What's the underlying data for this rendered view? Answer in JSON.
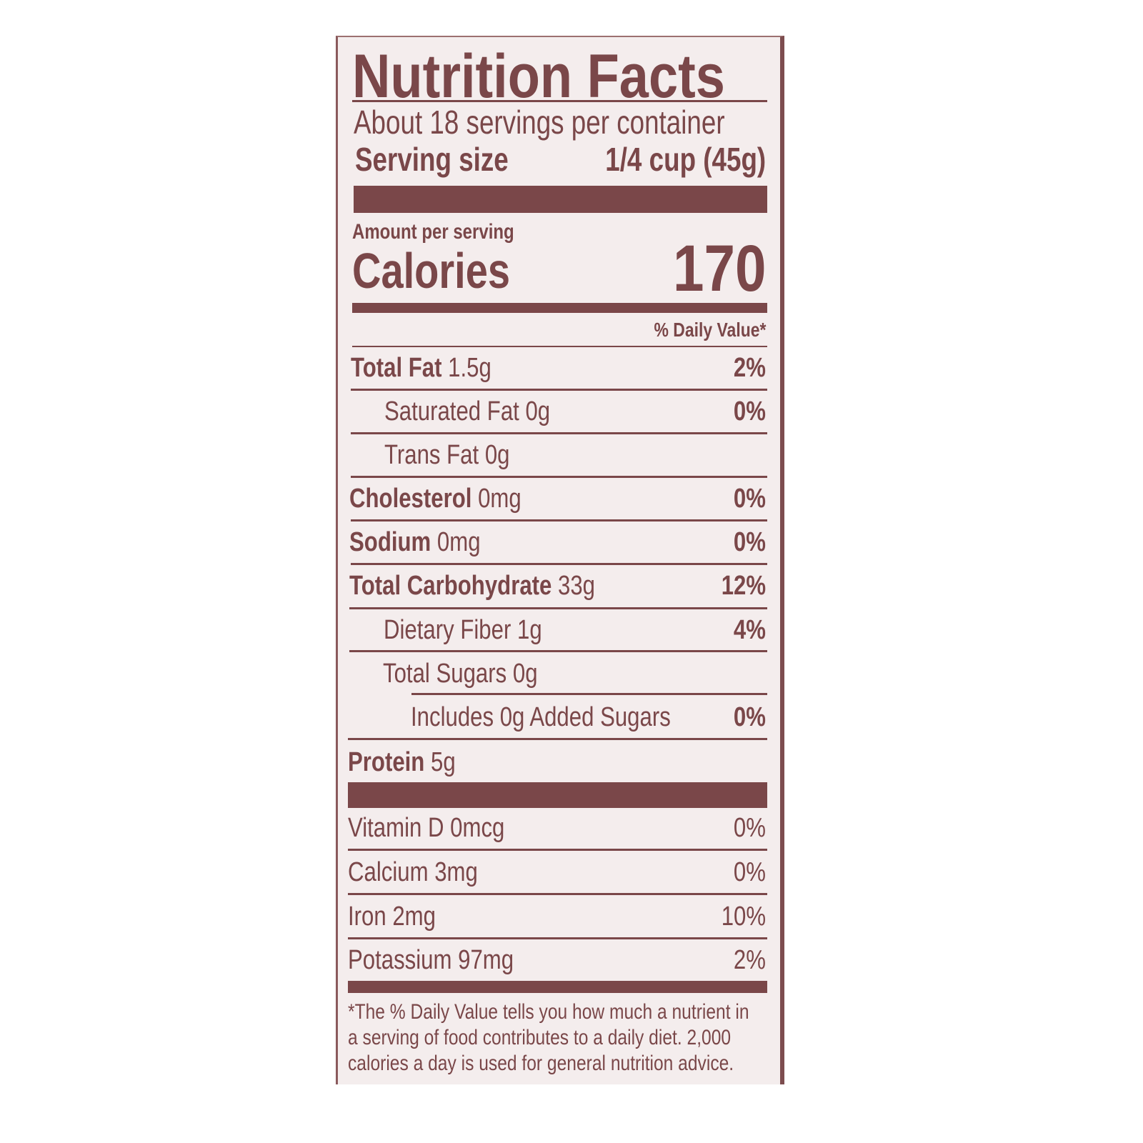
{
  "title": "Nutrition Facts",
  "servings_per_container": "About 18 servings per container",
  "serving_size_label": "Serving size",
  "serving_size_value": "1/4 cup (45g)",
  "amount_per_serving": "Amount per serving",
  "calories_label": "Calories",
  "calories_value": "170",
  "daily_value_header": "% Daily Value*",
  "nutrients": [
    {
      "name": "Total Fat",
      "amount": "1.5g",
      "dv": "2%"
    },
    {
      "name": "Saturated Fat 0g",
      "dv": "0%"
    },
    {
      "name": "Trans Fat 0g"
    },
    {
      "name": "Cholesterol",
      "amount": "0mg",
      "dv": "0%"
    },
    {
      "name": "Sodium",
      "amount": "0mg",
      "dv": "0%"
    },
    {
      "name": "Total Carbohydrate",
      "amount": "33g",
      "dv": "12%"
    },
    {
      "name": "Dietary Fiber 1g",
      "dv": "4%"
    },
    {
      "name": "Total Sugars 0g"
    },
    {
      "name": "Includes 0g Added Sugars",
      "dv": "0%"
    },
    {
      "name": "Protein",
      "amount": "5g"
    }
  ],
  "vitamins": [
    {
      "name": "Vitamin D 0mcg",
      "dv": "0%"
    },
    {
      "name": "Calcium 3mg",
      "dv": "0%"
    },
    {
      "name": "Iron 2mg",
      "dv": "10%"
    },
    {
      "name": "Potassium 97mg",
      "dv": "2%"
    }
  ],
  "footnote": [
    "*The % Daily Value tells you how much a nutrient in",
    "a serving of food contributes to a daily diet. 2,000",
    "calories a day is used for general nutrition advice."
  ],
  "colors": {
    "ink": "#7a4749",
    "background": "#f4eded"
  }
}
